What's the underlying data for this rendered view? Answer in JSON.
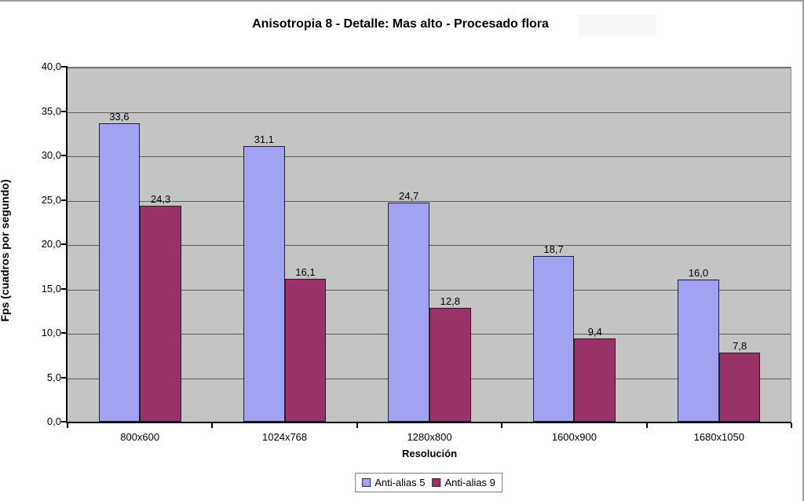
{
  "window": {
    "border_color": "#9b9b9b",
    "background": "#ffffff"
  },
  "chart_data": {
    "type": "bar",
    "title": "Anisotropia 8 - Detalle: Mas alto - Procesado flora",
    "xlabel": "Resolución",
    "ylabel": "Fps (cuadros por segundo)",
    "categories": [
      "800x600",
      "1024x768",
      "1280x800",
      "1600x900",
      "1680x1050"
    ],
    "series": [
      {
        "name": "Anti-alias 5",
        "color": "#a2a2f2",
        "values": [
          33.6,
          31.1,
          24.7,
          18.7,
          16.0
        ]
      },
      {
        "name": "Anti-alias 9",
        "color": "#993366",
        "values": [
          24.3,
          16.1,
          12.8,
          9.4,
          7.8
        ]
      }
    ],
    "ylim": [
      0,
      40
    ],
    "ytick_step": 5,
    "decimal_separator": ",",
    "grid": true,
    "gridline_color": "#5e5e5e",
    "plot_background": "#c4c4c4",
    "legend_position": "bottom",
    "data_labels": true
  }
}
